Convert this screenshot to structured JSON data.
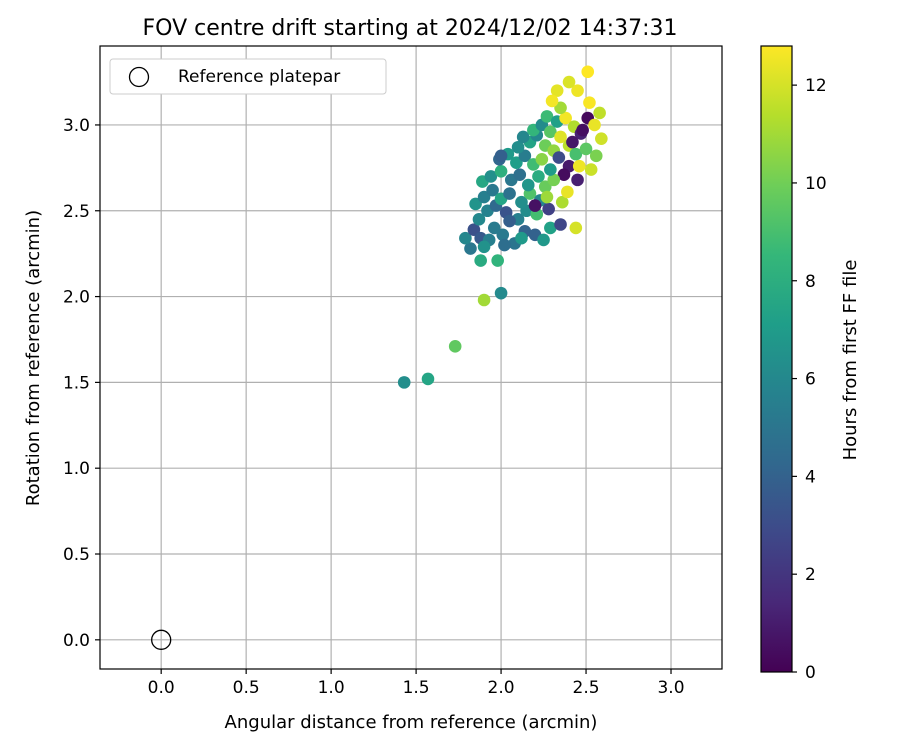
{
  "chart_data": {
    "type": "scatter",
    "title": "FOV centre drift starting at 2024/12/02 14:37:31",
    "xlabel": "Angular distance from reference (arcmin)",
    "ylabel": "Rotation from reference (arcmin)",
    "xlim": [
      -0.36,
      3.3
    ],
    "ylim": [
      -0.17,
      3.46
    ],
    "xticks": [
      0.0,
      0.5,
      1.0,
      1.5,
      2.0,
      2.5,
      3.0
    ],
    "yticks": [
      0.0,
      0.5,
      1.0,
      1.5,
      2.0,
      2.5,
      3.0
    ],
    "xtick_labels": [
      "0.0",
      "0.5",
      "1.0",
      "1.5",
      "2.0",
      "2.5",
      "3.0"
    ],
    "ytick_labels": [
      "0.0",
      "0.5",
      "1.0",
      "1.5",
      "2.0",
      "2.5",
      "3.0"
    ],
    "grid": true,
    "legend": {
      "position": "top-left",
      "entries": [
        {
          "label": "Reference platepar",
          "marker": "open-circle"
        }
      ]
    },
    "reference_point": {
      "x": 0.0,
      "y": 0.0
    },
    "colorbar": {
      "label": "Hours from first FF file",
      "range": [
        0,
        12.8
      ],
      "ticks": [
        0,
        2,
        4,
        6,
        8,
        10,
        12
      ],
      "tick_labels": [
        "0",
        "2",
        "4",
        "6",
        "8",
        "10",
        "12"
      ],
      "colormap": "viridis",
      "colors": [
        "#440154",
        "#482878",
        "#3e4989",
        "#31688e",
        "#26828e",
        "#1f9e89",
        "#35b779",
        "#6ece58",
        "#b5de2b",
        "#fde725"
      ]
    },
    "points": [
      [
        1.43,
        1.5,
        6.3
      ],
      [
        1.57,
        1.52,
        7.5
      ],
      [
        1.73,
        1.71,
        9.6
      ],
      [
        1.9,
        1.98,
        11.0
      ],
      [
        2.0,
        2.02,
        6.1
      ],
      [
        1.98,
        2.21,
        8.3
      ],
      [
        1.88,
        2.21,
        7.8
      ],
      [
        1.82,
        2.28,
        5.1
      ],
      [
        1.79,
        2.34,
        5.9
      ],
      [
        1.84,
        2.39,
        3.2
      ],
      [
        1.88,
        2.34,
        3.6
      ],
      [
        1.93,
        2.33,
        5.5
      ],
      [
        2.01,
        2.36,
        5.2
      ],
      [
        2.08,
        2.31,
        5.0
      ],
      [
        2.14,
        2.38,
        4.1
      ],
      [
        2.2,
        2.36,
        4.0
      ],
      [
        2.25,
        2.33,
        6.8
      ],
      [
        2.29,
        2.4,
        7.3
      ],
      [
        1.87,
        2.45,
        6.0
      ],
      [
        1.92,
        2.5,
        5.7
      ],
      [
        1.97,
        2.53,
        4.4
      ],
      [
        2.03,
        2.49,
        3.3
      ],
      [
        2.1,
        2.45,
        5.6
      ],
      [
        2.15,
        2.5,
        6.2
      ],
      [
        2.21,
        2.48,
        8.9
      ],
      [
        1.85,
        2.54,
        6.6
      ],
      [
        1.9,
        2.58,
        5.5
      ],
      [
        1.95,
        2.62,
        5.2
      ],
      [
        2.0,
        2.57,
        7.5
      ],
      [
        2.05,
        2.6,
        4.8
      ],
      [
        2.12,
        2.55,
        6.3
      ],
      [
        2.17,
        2.6,
        9.2
      ],
      [
        2.23,
        2.56,
        5.9
      ],
      [
        1.89,
        2.67,
        7.6
      ],
      [
        1.94,
        2.7,
        6.4
      ],
      [
        2.0,
        2.73,
        8.1
      ],
      [
        2.06,
        2.68,
        5.1
      ],
      [
        2.11,
        2.71,
        4.7
      ],
      [
        2.16,
        2.65,
        6.7
      ],
      [
        2.22,
        2.7,
        7.9
      ],
      [
        2.26,
        2.64,
        9.8
      ],
      [
        1.99,
        2.8,
        4.2
      ],
      [
        2.04,
        2.83,
        6.9
      ],
      [
        2.09,
        2.78,
        7.1
      ],
      [
        2.14,
        2.82,
        5.4
      ],
      [
        2.19,
        2.77,
        8.8
      ],
      [
        2.24,
        2.8,
        10.5
      ],
      [
        2.0,
        2.82,
        3.9
      ],
      [
        2.1,
        2.87,
        6.3
      ],
      [
        2.17,
        2.9,
        7.4
      ],
      [
        2.21,
        2.94,
        6.0
      ],
      [
        2.26,
        2.88,
        9.9
      ],
      [
        2.31,
        2.85,
        10.7
      ],
      [
        2.13,
        2.93,
        5.9
      ],
      [
        2.19,
        2.97,
        8.4
      ],
      [
        2.24,
        3.0,
        6.2
      ],
      [
        2.29,
        2.96,
        9.4
      ],
      [
        2.35,
        2.93,
        12.2
      ],
      [
        2.4,
        2.88,
        11.5
      ],
      [
        2.27,
        3.05,
        8.7
      ],
      [
        2.33,
        3.02,
        7.2
      ],
      [
        2.38,
        3.04,
        12.6
      ],
      [
        2.43,
        2.99,
        11.3
      ],
      [
        2.47,
        2.95,
        1.2
      ],
      [
        2.42,
        2.9,
        0.8
      ],
      [
        2.48,
        2.97,
        0.5
      ],
      [
        2.51,
        3.04,
        0.3
      ],
      [
        2.4,
        2.76,
        0.9
      ],
      [
        2.37,
        2.71,
        0.4
      ],
      [
        2.45,
        2.68,
        1.1
      ],
      [
        2.53,
        2.74,
        11.8
      ],
      [
        2.56,
        2.82,
        10.2
      ],
      [
        2.59,
        2.92,
        11.9
      ],
      [
        2.55,
        3.0,
        12.4
      ],
      [
        2.58,
        3.07,
        11.6
      ],
      [
        2.52,
        3.13,
        12.7
      ],
      [
        2.51,
        3.31,
        12.8
      ],
      [
        2.45,
        3.2,
        12.5
      ],
      [
        2.33,
        3.2,
        12.3
      ],
      [
        2.4,
        3.25,
        12.1
      ],
      [
        2.35,
        3.1,
        11.0
      ],
      [
        2.3,
        3.14,
        12.6
      ],
      [
        2.28,
        2.51,
        2.5
      ],
      [
        2.35,
        2.42,
        2.7
      ],
      [
        2.2,
        2.53,
        0.6
      ],
      [
        2.44,
        2.4,
        12.0
      ],
      [
        2.31,
        2.68,
        10.1
      ],
      [
        2.36,
        2.55,
        11.2
      ],
      [
        2.39,
        2.61,
        12.4
      ],
      [
        2.27,
        2.58,
        10.9
      ],
      [
        2.05,
        2.44,
        3.8
      ],
      [
        1.96,
        2.4,
        5.3
      ],
      [
        1.9,
        2.29,
        6.5
      ],
      [
        2.02,
        2.3,
        4.6
      ],
      [
        2.12,
        2.34,
        6.9
      ],
      [
        2.44,
        2.83,
        9.0
      ],
      [
        2.5,
        2.86,
        9.5
      ],
      [
        2.46,
        2.76,
        12.5
      ],
      [
        2.34,
        2.81,
        3.0
      ],
      [
        2.29,
        2.74,
        7.0
      ]
    ]
  }
}
